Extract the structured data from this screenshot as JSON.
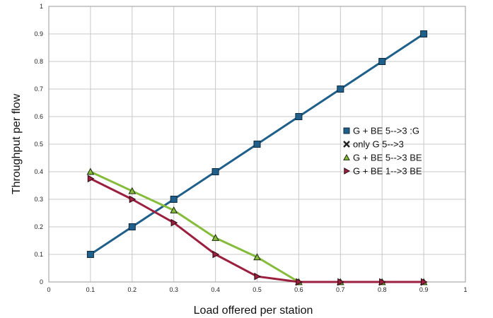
{
  "chart_data": {
    "type": "line",
    "xlabel": "Load offered per station",
    "ylabel": "Throughput per flow",
    "xlim": [
      0,
      1
    ],
    "ylim": [
      0,
      1
    ],
    "x_ticks": [
      "0",
      "0.1",
      "0.2",
      "0.3",
      "0.4",
      "0.5",
      "0.6",
      "0.7",
      "0.8",
      "0.9",
      "1"
    ],
    "y_ticks": [
      "0",
      "0.1",
      "0.2",
      "0.3",
      "0.4",
      "0.5",
      "0.6",
      "0.7",
      "0.8",
      "0.9",
      "1"
    ],
    "grid": true,
    "legend_position": "right",
    "x": [
      0.1,
      0.2,
      0.3,
      0.4,
      0.5,
      0.6,
      0.7,
      0.8,
      0.9
    ],
    "series": [
      {
        "name": "G + BE 5-->3 :G",
        "color": "#1f5f8a",
        "marker": "square",
        "values": [
          0.1,
          0.2,
          0.3,
          0.4,
          0.5,
          0.6,
          0.7,
          0.8,
          0.9
        ]
      },
      {
        "name": "only G 5-->3",
        "color": "#222222",
        "marker": "x",
        "values": [
          null,
          null,
          null,
          null,
          null,
          null,
          null,
          null,
          null
        ]
      },
      {
        "name": "G + BE 5-->3 BE",
        "color": "#86bb3c",
        "marker": "triangle",
        "values": [
          0.4,
          0.33,
          0.26,
          0.16,
          0.09,
          0.0,
          0.0,
          0.0,
          0.0
        ]
      },
      {
        "name": "G + BE 1-->3 BE",
        "color": "#9b1f3f",
        "marker": "triangle-right",
        "values": [
          0.375,
          0.3,
          0.215,
          0.1,
          0.02,
          0.0,
          0.0,
          0.0,
          0.0
        ]
      }
    ]
  }
}
